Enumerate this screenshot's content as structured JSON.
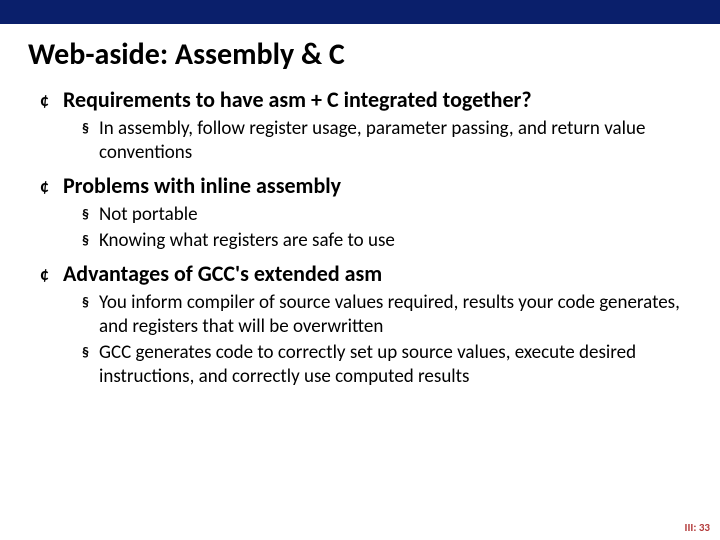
{
  "colors": {
    "topbar": "#0a1f6b",
    "title": "#000000",
    "text": "#000000",
    "footer": "#b33a3a",
    "background": "#ffffff"
  },
  "title": "Web-aside: Assembly & C",
  "items": [
    {
      "label": "Requirements to have asm + C integrated together?",
      "sub": [
        "In assembly, follow register usage, parameter passing, and return value conventions"
      ]
    },
    {
      "label": "Problems with inline assembly",
      "sub": [
        "Not portable",
        "Knowing what registers are safe to use"
      ]
    },
    {
      "label": "Advantages of GCC's extended asm",
      "sub": [
        "You inform compiler of source values required, results your code generates, and registers that will be overwritten",
        "GCC generates code to correctly set up source values, execute desired instructions, and correctly use computed results"
      ]
    }
  ],
  "footer": "III: 33",
  "bullets": {
    "l1": "¢",
    "l2": "§"
  },
  "typography": {
    "title_fontsize": 30,
    "l1_fontsize": 22,
    "l2_fontsize": 19,
    "footer_fontsize": 11
  }
}
